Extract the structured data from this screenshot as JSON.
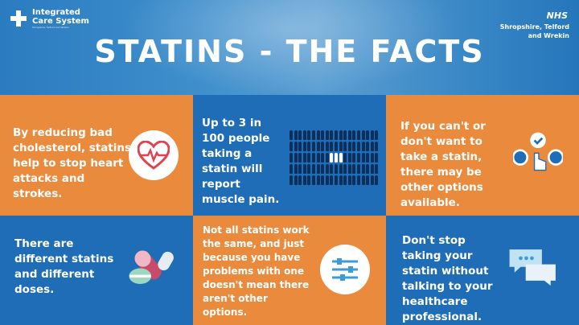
{
  "header": {
    "logo_name_line1": "Integrated",
    "logo_name_line2": "Care System",
    "logo_sub": "Shropshire, Telford and Wrekin",
    "nhs_badge": "NHS",
    "nhs_area_line1": "Shropshire, Telford",
    "nhs_area_line2": "and Wrekin",
    "title": "STATINS - THE FACTS"
  },
  "colors": {
    "orange": "#ea8a3c",
    "blue": "#1f6db6",
    "dark_people": "#0d2f5c",
    "heart_red": "#e0434f"
  },
  "cards": [
    {
      "text": "By reducing bad cholesterol, statins help to stop heart attacks and strokes.",
      "icon": "heart-pulse-icon"
    },
    {
      "text": "Up to 3 in 100 people taking a statin will report muscle pain.",
      "icon": "people-grid-icon",
      "people_total": 100,
      "people_highlighted": 3
    },
    {
      "text": "If you can't or don't want to take a statin, there may be other options available.",
      "icon": "options-choice-icon"
    },
    {
      "text": "There are different statins and different doses.",
      "icon": "pills-icon"
    },
    {
      "text": "Not all statins work the same, and just because you have problems with one doesn't mean there aren't other options.",
      "icon": "sliders-icon"
    },
    {
      "text": "Don't stop taking your statin without talking to your healthcare professional.",
      "icon": "speech-bubbles-icon"
    }
  ]
}
